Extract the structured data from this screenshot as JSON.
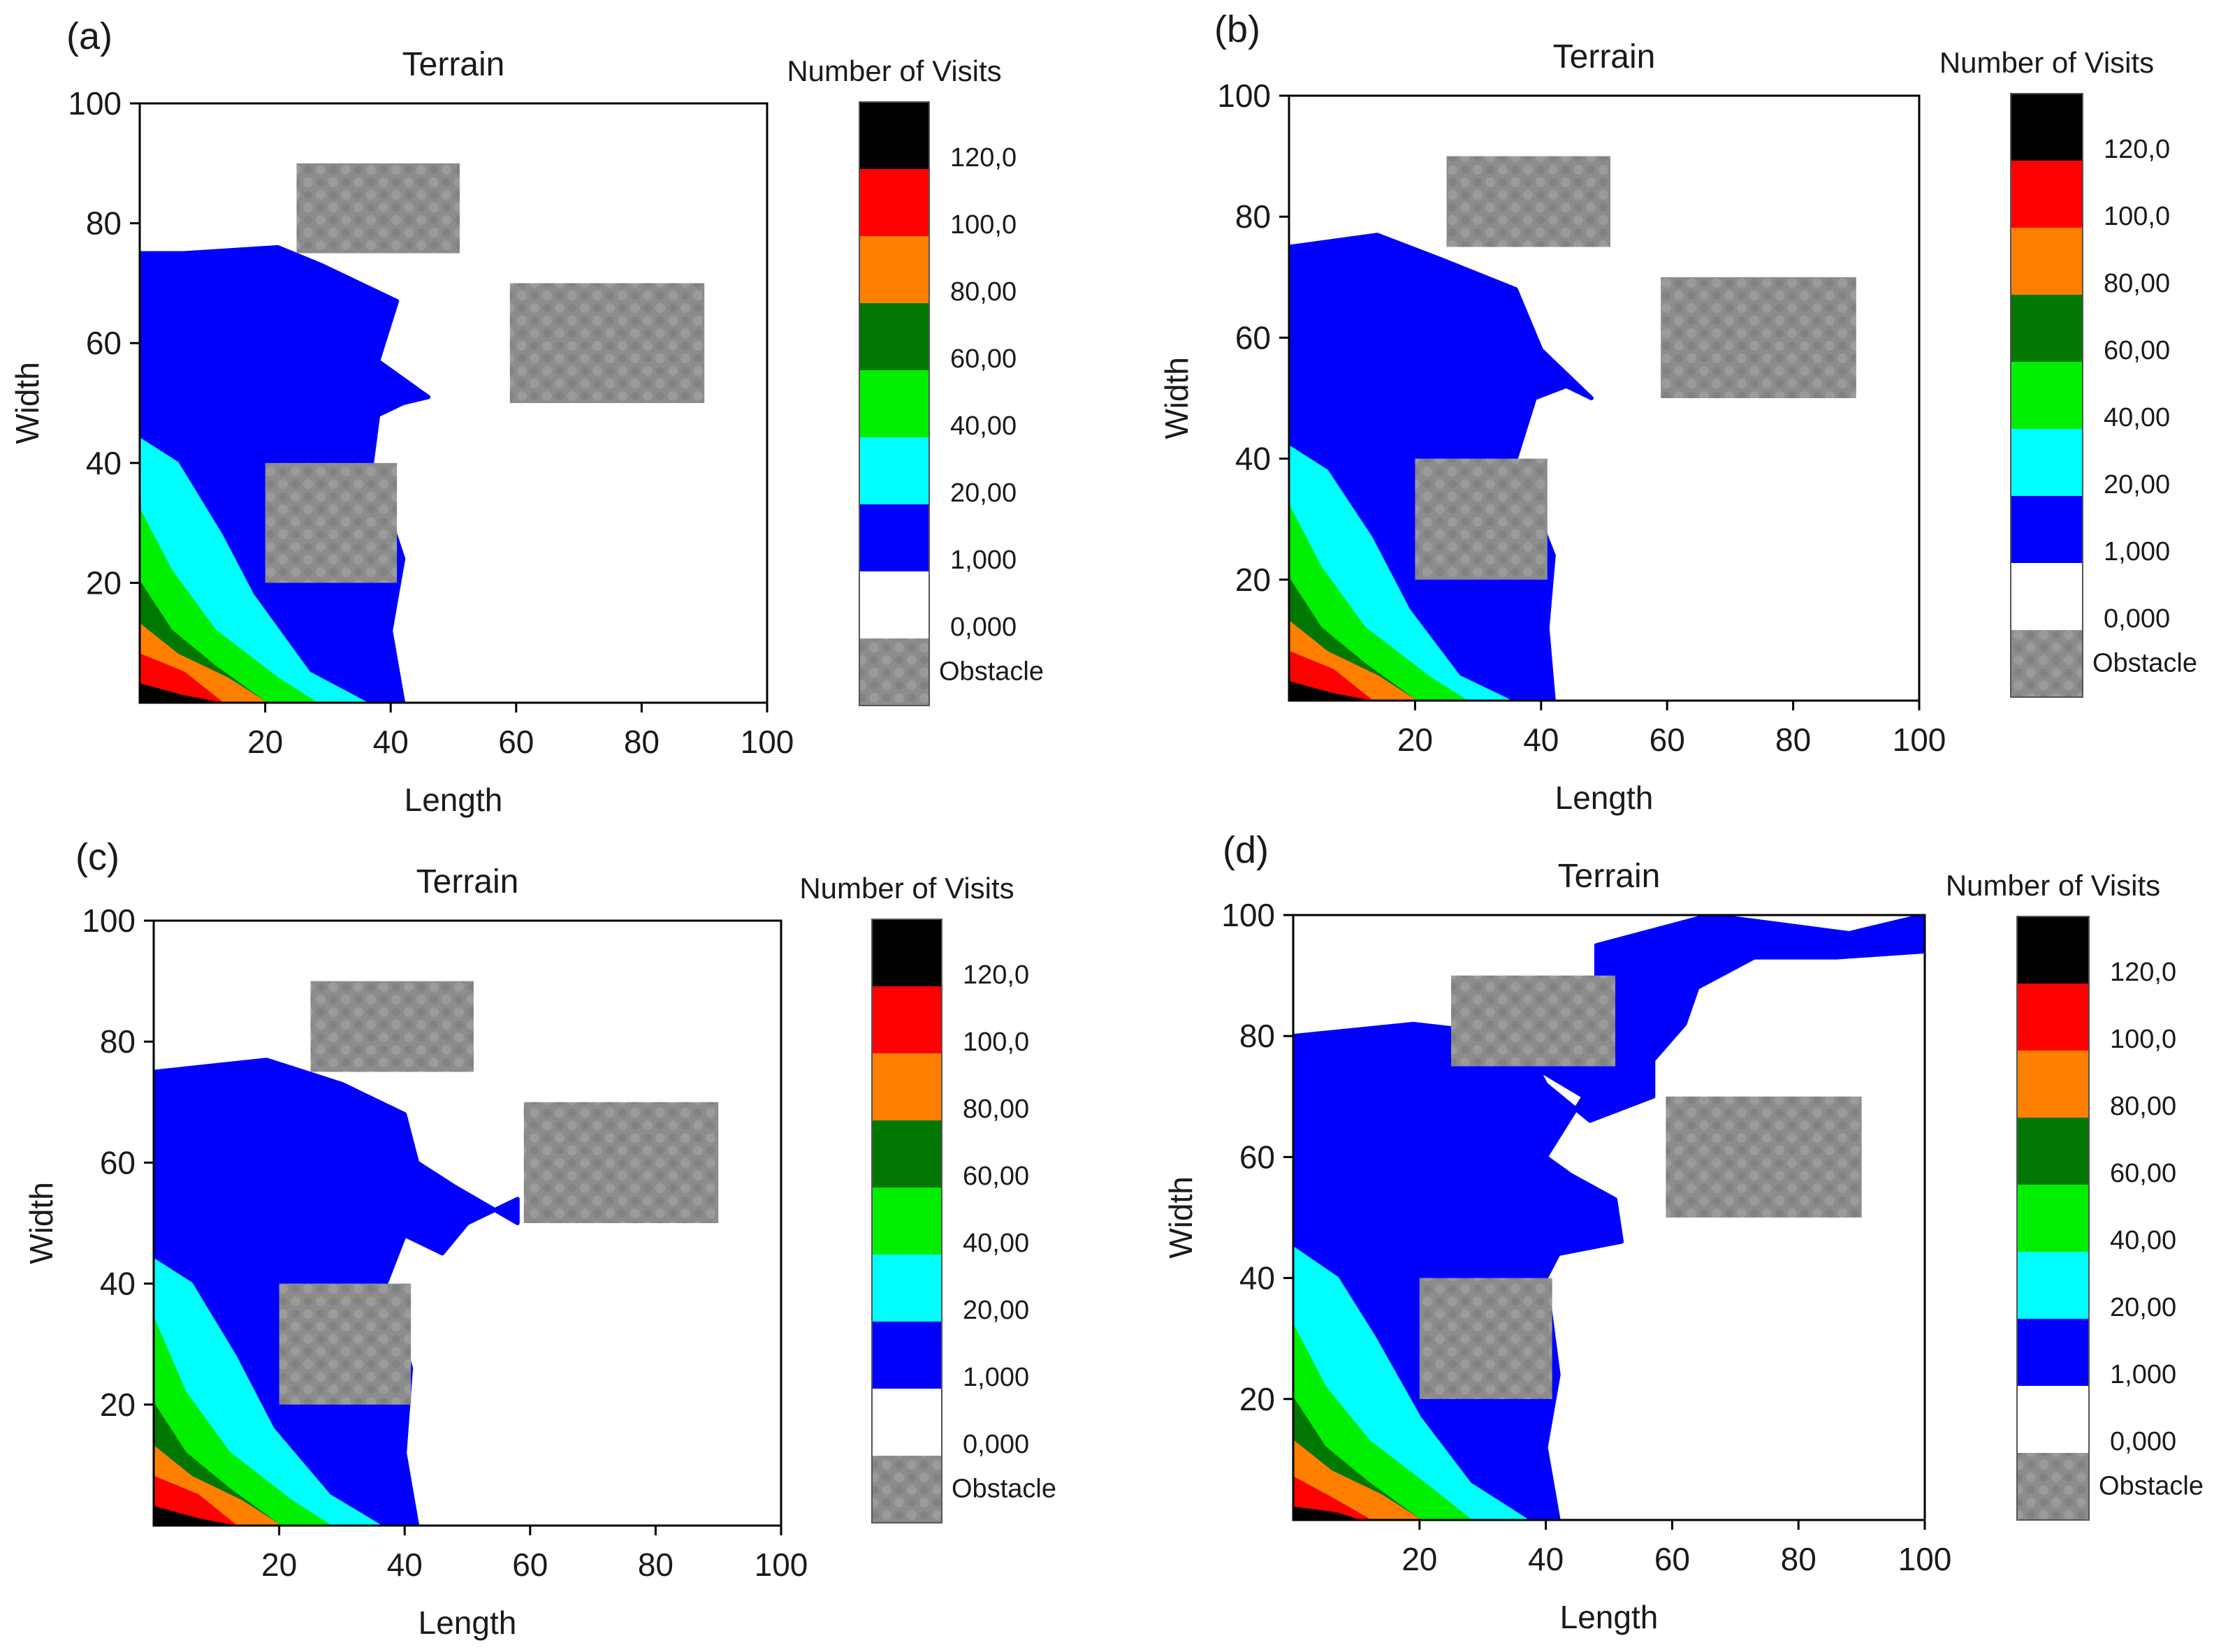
{
  "figure": {
    "panels": [
      {
        "label": "(a)",
        "title": "Terrain",
        "xlabel": "Length",
        "ylabel": "Width",
        "colorbar_title": "Number of Visits",
        "xticks": [
          "20",
          "40",
          "60",
          "80",
          "100"
        ],
        "yticks": [
          "20",
          "40",
          "60",
          "80",
          "100"
        ]
      },
      {
        "label": "(b)",
        "title": "Terrain",
        "xlabel": "Length",
        "ylabel": "Width",
        "colorbar_title": "Number of Visits",
        "xticks": [
          "20",
          "40",
          "60",
          "80",
          "100"
        ],
        "yticks": [
          "20",
          "40",
          "60",
          "80",
          "100"
        ]
      },
      {
        "label": "(c)",
        "title": "Terrain",
        "xlabel": "Length",
        "ylabel": "Width",
        "colorbar_title": "Number of Visits",
        "xticks": [
          "20",
          "40",
          "60",
          "80",
          "100"
        ],
        "yticks": [
          "20",
          "40",
          "60",
          "80",
          "100"
        ]
      },
      {
        "label": "(d)",
        "title": "Terrain",
        "xlabel": "Length",
        "ylabel": "Width",
        "colorbar_title": "Number of Visits",
        "xticks": [
          "20",
          "40",
          "60",
          "80",
          "100"
        ],
        "yticks": [
          "20",
          "40",
          "60",
          "80",
          "100"
        ]
      }
    ]
  },
  "chart_data": {
    "type": "heatmap",
    "grid": "100x100 terrain cells",
    "xlim": [
      0,
      100
    ],
    "ylim": [
      0,
      100
    ],
    "colorbar": {
      "title": "Number of Visits",
      "bands": [
        {
          "label": "Obstacle",
          "color": "#8c8c8c"
        },
        {
          "label": "0,000",
          "color": "#ffffff"
        },
        {
          "label": "1,000",
          "color": "#0000ff"
        },
        {
          "label": "20,00",
          "color": "#00ffff"
        },
        {
          "label": "40,00",
          "color": "#00ee00"
        },
        {
          "label": "60,00",
          "color": "#007700"
        },
        {
          "label": "80,00",
          "color": "#ff8000"
        },
        {
          "label": "100,0",
          "color": "#ff0000"
        },
        {
          "label": "120,0",
          "color": "#000000"
        }
      ]
    },
    "obstacles": [
      {
        "x": [
          25,
          51
        ],
        "y": [
          75,
          90
        ]
      },
      {
        "x": [
          59,
          90
        ],
        "y": [
          50,
          70
        ]
      },
      {
        "x": [
          20,
          41
        ],
        "y": [
          20,
          40
        ]
      }
    ],
    "panels": [
      {
        "label": "(a)",
        "visited_region_outline": [
          [
            0,
            0
          ],
          [
            42,
            0
          ],
          [
            40,
            12
          ],
          [
            42,
            24
          ],
          [
            37,
            40
          ],
          [
            38,
            48
          ],
          [
            42,
            50
          ],
          [
            46,
            51
          ],
          [
            38,
            57
          ],
          [
            41,
            67
          ],
          [
            29,
            73
          ],
          [
            22,
            76
          ],
          [
            7,
            75
          ],
          [
            0,
            75
          ]
        ],
        "level_boundaries": {
          "20,00": [
            [
              0,
              44
            ],
            [
              6,
              40
            ],
            [
              13,
              28
            ],
            [
              18,
              18
            ],
            [
              27,
              5
            ],
            [
              36,
              0
            ]
          ],
          "40,00": [
            [
              0,
              32
            ],
            [
              5,
              22
            ],
            [
              12,
              12
            ],
            [
              22,
              4
            ],
            [
              28,
              0
            ]
          ],
          "60,00": [
            [
              0,
              20
            ],
            [
              5,
              12
            ],
            [
              12,
              6
            ],
            [
              20,
              0
            ]
          ],
          "80,00": [
            [
              0,
              13
            ],
            [
              6,
              8
            ],
            [
              14,
              4
            ],
            [
              20,
              0
            ]
          ],
          "100,0": [
            [
              0,
              8
            ],
            [
              7,
              5
            ],
            [
              13,
              0
            ]
          ],
          "120,0": [
            [
              0,
              3
            ],
            [
              7,
              1
            ],
            [
              12,
              0
            ]
          ]
        }
      },
      {
        "label": "(b)",
        "visited_region_outline": [
          [
            0,
            0
          ],
          [
            42,
            0
          ],
          [
            41,
            12
          ],
          [
            42,
            24
          ],
          [
            36,
            40
          ],
          [
            39,
            50
          ],
          [
            44,
            52
          ],
          [
            48,
            50
          ],
          [
            40,
            58
          ],
          [
            36,
            68
          ],
          [
            24,
            73
          ],
          [
            14,
            77
          ],
          [
            0,
            75
          ]
        ],
        "level_boundaries": {
          "20,00": [
            [
              0,
              42
            ],
            [
              6,
              38
            ],
            [
              13,
              27
            ],
            [
              19,
              15
            ],
            [
              27,
              4
            ],
            [
              35,
              0
            ]
          ],
          "40,00": [
            [
              0,
              32
            ],
            [
              5,
              22
            ],
            [
              12,
              12
            ],
            [
              22,
              4
            ],
            [
              28,
              0
            ]
          ],
          "60,00": [
            [
              0,
              20
            ],
            [
              5,
              12
            ],
            [
              12,
              6
            ],
            [
              20,
              0
            ]
          ],
          "80,00": [
            [
              0,
              13
            ],
            [
              6,
              8
            ],
            [
              14,
              4
            ],
            [
              20,
              0
            ]
          ],
          "100,0": [
            [
              0,
              8
            ],
            [
              7,
              5
            ],
            [
              13,
              0
            ]
          ],
          "120,0": [
            [
              0,
              3
            ],
            [
              7,
              1
            ],
            [
              12,
              0
            ]
          ]
        }
      },
      {
        "label": "(c)",
        "visited_region_outline": [
          [
            0,
            0
          ],
          [
            42,
            0
          ],
          [
            40,
            12
          ],
          [
            41,
            26
          ],
          [
            37,
            40
          ],
          [
            40,
            48
          ],
          [
            46,
            45
          ],
          [
            50,
            50
          ],
          [
            58,
            54
          ],
          [
            58,
            50
          ],
          [
            48,
            56
          ],
          [
            42,
            60
          ],
          [
            40,
            68
          ],
          [
            30,
            73
          ],
          [
            18,
            77
          ],
          [
            0,
            75
          ]
        ],
        "level_boundaries": {
          "20,00": [
            [
              0,
              44
            ],
            [
              6,
              40
            ],
            [
              13,
              28
            ],
            [
              19,
              16
            ],
            [
              28,
              5
            ],
            [
              36,
              0
            ]
          ],
          "40,00": [
            [
              0,
              34
            ],
            [
              5,
              22
            ],
            [
              12,
              12
            ],
            [
              22,
              4
            ],
            [
              28,
              0
            ]
          ],
          "60,00": [
            [
              0,
              20
            ],
            [
              5,
              12
            ],
            [
              12,
              6
            ],
            [
              20,
              0
            ]
          ],
          "80,00": [
            [
              0,
              13
            ],
            [
              6,
              8
            ],
            [
              14,
              4
            ],
            [
              20,
              0
            ]
          ],
          "100,0": [
            [
              0,
              8
            ],
            [
              7,
              5
            ],
            [
              13,
              0
            ]
          ],
          "120,0": [
            [
              0,
              3
            ],
            [
              7,
              1
            ],
            [
              12,
              0
            ]
          ]
        }
      },
      {
        "label": "(d)",
        "visited_region_outline": [
          [
            0,
            0
          ],
          [
            42,
            0
          ],
          [
            40,
            12
          ],
          [
            42,
            24
          ],
          [
            40,
            40
          ],
          [
            42,
            44
          ],
          [
            52,
            46
          ],
          [
            51,
            53
          ],
          [
            44,
            57
          ],
          [
            40,
            60
          ],
          [
            46,
            70
          ],
          [
            38,
            75
          ],
          [
            48,
            85
          ],
          [
            48,
            95
          ],
          [
            66,
            100
          ],
          [
            88,
            97
          ],
          [
            100,
            100
          ],
          [
            100,
            94
          ],
          [
            86,
            93
          ],
          [
            73,
            93
          ],
          [
            64,
            88
          ],
          [
            62,
            82
          ],
          [
            57,
            76
          ],
          [
            57,
            70
          ],
          [
            47,
            66
          ],
          [
            40,
            72
          ],
          [
            36,
            80
          ],
          [
            19,
            82
          ],
          [
            0,
            80
          ]
        ],
        "level_boundaries": {
          "20,00": [
            [
              0,
              45
            ],
            [
              7,
              40
            ],
            [
              13,
              30
            ],
            [
              20,
              17
            ],
            [
              28,
              6
            ],
            [
              37,
              0
            ]
          ],
          "40,00": [
            [
              0,
              32
            ],
            [
              5,
              22
            ],
            [
              12,
              13
            ],
            [
              22,
              5
            ],
            [
              28,
              0
            ]
          ],
          "60,00": [
            [
              0,
              20
            ],
            [
              5,
              12
            ],
            [
              12,
              6
            ],
            [
              20,
              0
            ]
          ],
          "80,00": [
            [
              0,
              13
            ],
            [
              6,
              8
            ],
            [
              14,
              4
            ],
            [
              20,
              0
            ]
          ],
          "100,0": [
            [
              0,
              7
            ],
            [
              7,
              3
            ],
            [
              12,
              0
            ]
          ],
          "120,0": [
            [
              0,
              2
            ],
            [
              7,
              1
            ],
            [
              10,
              0
            ]
          ]
        }
      }
    ]
  }
}
